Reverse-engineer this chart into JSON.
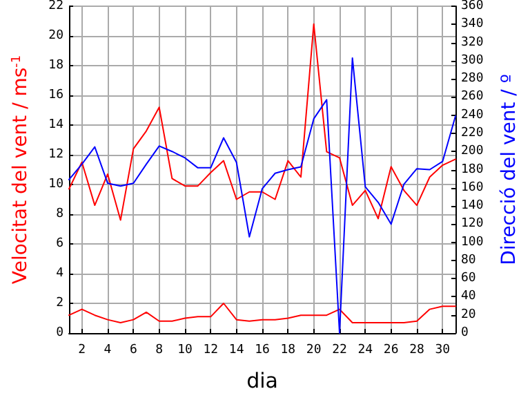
{
  "chart_data": {
    "type": "line",
    "xlabel": "dia",
    "ylabel": "Velocitat del vent / ms$^{-1}$",
    "y2label": "Direcció del vent / º",
    "x": [
      1,
      2,
      3,
      4,
      5,
      6,
      7,
      8,
      9,
      10,
      11,
      12,
      13,
      14,
      15,
      16,
      17,
      18,
      19,
      20,
      21,
      22,
      23,
      24,
      25,
      26,
      27,
      28,
      29,
      30,
      31
    ],
    "series": [
      {
        "color": "#ff0000",
        "values": [
          9.7,
          11.5,
          8.6,
          10.7,
          7.6,
          12.4,
          13.6,
          15.2,
          10.4,
          9.9,
          9.9,
          10.8,
          11.6,
          9.0,
          9.5,
          9.5,
          9.0,
          11.6,
          10.5,
          20.8,
          12.2,
          11.8,
          8.6,
          9.6,
          7.7,
          11.2,
          9.6,
          8.6,
          10.5,
          11.3,
          11.7
        ]
      },
      {
        "color": "#ff0000",
        "values": [
          1.2,
          1.6,
          1.2,
          0.9,
          0.7,
          0.9,
          1.4,
          0.8,
          0.8,
          1.0,
          1.1,
          1.1,
          2.0,
          0.9,
          0.8,
          0.9,
          0.9,
          1.0,
          1.2,
          1.2,
          1.2,
          1.6,
          0.7,
          0.7,
          0.7,
          0.7,
          0.7,
          0.8,
          1.6,
          1.8,
          1.8
        ]
      },
      {
        "color": "#0000ff",
        "axis": "y2",
        "values": [
          169,
          186,
          205,
          165,
          162,
          165,
          186,
          206,
          200,
          193,
          182,
          182,
          215,
          188,
          106,
          159,
          176,
          180,
          183,
          236,
          257,
          0,
          303,
          161,
          144,
          120,
          164,
          181,
          180,
          189,
          239
        ]
      }
    ],
    "xlim": [
      1,
      31
    ],
    "xticks": [
      2,
      4,
      6,
      8,
      10,
      12,
      14,
      16,
      18,
      20,
      22,
      24,
      26,
      28,
      30
    ],
    "ylim": [
      0,
      22
    ],
    "yticks": [
      0,
      2,
      4,
      6,
      8,
      10,
      12,
      14,
      16,
      18,
      20,
      22
    ],
    "y2lim": [
      0,
      360
    ],
    "y2ticks": [
      0,
      20,
      40,
      60,
      80,
      100,
      120,
      140,
      160,
      180,
      200,
      220,
      240,
      260,
      280,
      300,
      320,
      340,
      360
    ],
    "grid": true,
    "marker": "none",
    "line_style": "solid"
  }
}
